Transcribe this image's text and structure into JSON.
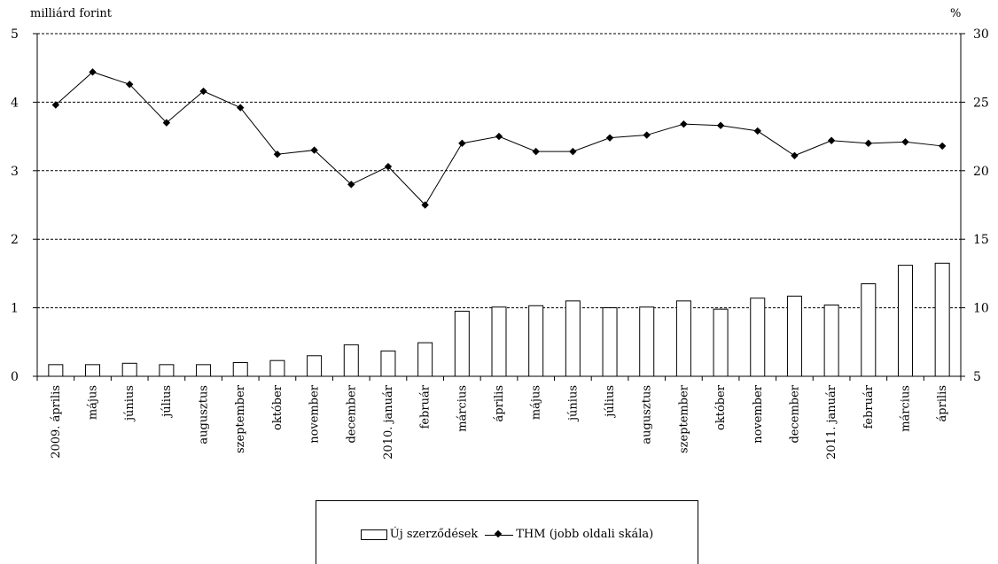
{
  "chart_data": {
    "type": "bar+line",
    "left_axis_label": "milliárd forint",
    "right_axis_label": "%",
    "left_ylim": [
      0,
      5
    ],
    "left_ticks": [
      0,
      1,
      2,
      3,
      4,
      5
    ],
    "right_ylim": [
      5,
      30
    ],
    "right_ticks": [
      5,
      10,
      15,
      20,
      25,
      30
    ],
    "grid": "horizontal dashed",
    "categories": [
      "2009. április",
      "május",
      "június",
      "július",
      "augusztus",
      "szeptember",
      "október",
      "november",
      "december",
      "2010. január",
      "február",
      "március",
      "április",
      "május",
      "június",
      "július",
      "augusztus",
      "szeptember",
      "október",
      "november",
      "december",
      "2011. január",
      "február",
      "március",
      "április"
    ],
    "series": [
      {
        "name": "Új szerződések",
        "type": "bar",
        "axis": "left",
        "values": [
          0.17,
          0.17,
          0.19,
          0.17,
          0.17,
          0.2,
          0.23,
          0.3,
          0.46,
          0.37,
          0.49,
          0.95,
          1.01,
          1.03,
          1.1,
          1.0,
          1.01,
          1.1,
          0.98,
          1.14,
          1.17,
          1.04,
          1.35,
          1.62,
          1.65
        ]
      },
      {
        "name": "THM (jobb oldali skála)",
        "type": "line",
        "axis": "right",
        "values": [
          24.8,
          27.2,
          26.3,
          23.5,
          25.8,
          24.6,
          21.2,
          21.5,
          19.0,
          20.3,
          17.5,
          22.0,
          22.5,
          21.4,
          21.4,
          22.4,
          22.6,
          23.4,
          23.3,
          22.9,
          21.1,
          22.2,
          22.0,
          22.1,
          21.8
        ]
      }
    ],
    "legend": "bottom-center"
  }
}
